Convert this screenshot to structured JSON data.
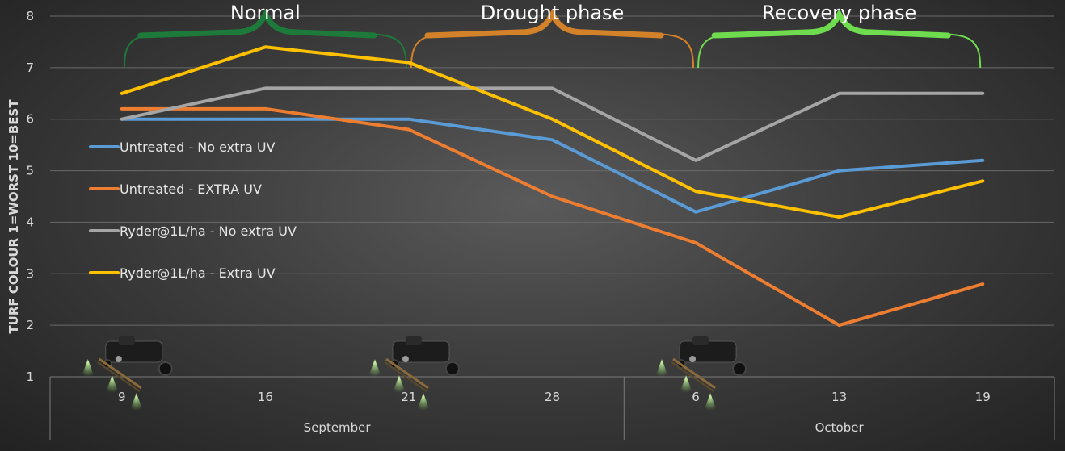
{
  "chart_data": {
    "type": "line",
    "ylabel": "TURF COLOUR 1=WORST 10=BEST",
    "ylim": [
      1,
      8
    ],
    "yticks": [
      1,
      2,
      3,
      4,
      5,
      6,
      7,
      8
    ],
    "grid": "horizontal",
    "categories": [
      "9",
      "16",
      "21",
      "28",
      "6",
      "13",
      "19"
    ],
    "month_groups": [
      {
        "label": "September",
        "categories": [
          "9",
          "16",
          "21",
          "28"
        ]
      },
      {
        "label": "October",
        "categories": [
          "6",
          "13",
          "19"
        ]
      }
    ],
    "series": [
      {
        "name": "Untreated - No extra UV",
        "color": "#5b9bd5",
        "values": [
          6.0,
          6.0,
          6.0,
          5.6,
          4.2,
          5.0,
          5.2
        ]
      },
      {
        "name": "Untreated - EXTRA UV",
        "color": "#ed7d31",
        "values": [
          6.2,
          6.2,
          5.8,
          4.5,
          3.6,
          2.0,
          2.8
        ]
      },
      {
        "name": "Ryder@1L/ha - No extra UV",
        "color": "#a5a5a5",
        "values": [
          6.0,
          6.6,
          6.6,
          6.6,
          5.2,
          6.5,
          6.5
        ]
      },
      {
        "name": "Ryder@1L/ha - Extra UV",
        "color": "#ffc000",
        "values": [
          6.5,
          7.4,
          7.1,
          6.0,
          4.6,
          4.1,
          4.8
        ]
      }
    ],
    "legend_position": "left",
    "annotations": {
      "phases": [
        {
          "label": "Normal",
          "color": "#1e7a3a"
        },
        {
          "label": "Drought phase",
          "color": "#d4822a"
        },
        {
          "label": "Recovery phase",
          "color": "#6fdc4f"
        }
      ],
      "sprayer_icons": [
        {
          "name": "sprayer-icon",
          "at_category": "9"
        },
        {
          "name": "sprayer-icon",
          "at_category": "21"
        },
        {
          "name": "sprayer-icon",
          "at_category": "6"
        }
      ]
    }
  }
}
